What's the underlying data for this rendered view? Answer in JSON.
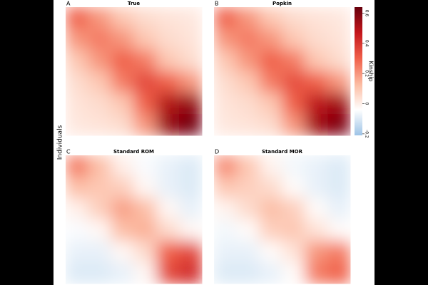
{
  "chart_data": {
    "type": "heatmap",
    "ylabel": "Individuals",
    "colorbar": {
      "label": "Kinship",
      "lim": [
        -0.21,
        0.64
      ],
      "ticks": [
        -0.2,
        0,
        0.2,
        0.4,
        0.6
      ],
      "colors": [
        "#9dc3e6",
        "#ffffff",
        "#fcbba1",
        "#f0604a",
        "#c4161c",
        "#67000d"
      ]
    },
    "panels": [
      {
        "letter": "A",
        "title": "True",
        "values": [
          [
            0.3,
            0.2,
            0.1,
            0.05,
            0.03,
            0.02
          ],
          [
            0.2,
            0.25,
            0.2,
            0.1,
            0.05,
            0.03
          ],
          [
            0.1,
            0.2,
            0.3,
            0.25,
            0.1,
            0.05
          ],
          [
            0.05,
            0.1,
            0.25,
            0.35,
            0.3,
            0.2
          ],
          [
            0.03,
            0.05,
            0.1,
            0.3,
            0.5,
            0.55
          ],
          [
            0.02,
            0.03,
            0.05,
            0.2,
            0.55,
            0.62
          ]
        ]
      },
      {
        "letter": "B",
        "title": "Popkin",
        "values": [
          [
            0.3,
            0.2,
            0.1,
            0.05,
            0.03,
            0.02
          ],
          [
            0.2,
            0.25,
            0.2,
            0.1,
            0.05,
            0.03
          ],
          [
            0.1,
            0.2,
            0.3,
            0.25,
            0.1,
            0.05
          ],
          [
            0.05,
            0.1,
            0.25,
            0.34,
            0.3,
            0.2
          ],
          [
            0.03,
            0.05,
            0.1,
            0.3,
            0.48,
            0.53
          ],
          [
            0.02,
            0.03,
            0.05,
            0.2,
            0.53,
            0.6
          ]
        ]
      },
      {
        "letter": "C",
        "title": "Standard ROM",
        "values": [
          [
            0.25,
            0.12,
            0.0,
            -0.05,
            -0.08,
            -0.1
          ],
          [
            0.12,
            0.1,
            0.08,
            -0.02,
            -0.08,
            -0.1
          ],
          [
            0.0,
            0.08,
            0.18,
            0.12,
            -0.02,
            -0.08
          ],
          [
            -0.05,
            -0.02,
            0.12,
            0.15,
            0.05,
            -0.02
          ],
          [
            -0.08,
            -0.08,
            -0.02,
            0.05,
            0.3,
            0.35
          ],
          [
            -0.1,
            -0.1,
            -0.08,
            -0.02,
            0.35,
            0.42
          ]
        ]
      },
      {
        "letter": "D",
        "title": "Standard MOR",
        "values": [
          [
            0.22,
            0.1,
            -0.01,
            -0.06,
            -0.08,
            -0.1
          ],
          [
            0.1,
            0.08,
            0.05,
            -0.03,
            -0.08,
            -0.1
          ],
          [
            -0.01,
            0.05,
            0.12,
            0.08,
            -0.03,
            -0.08
          ],
          [
            -0.06,
            -0.03,
            0.08,
            0.1,
            0.03,
            -0.03
          ],
          [
            -0.08,
            -0.08,
            -0.03,
            0.03,
            0.2,
            0.25
          ],
          [
            -0.1,
            -0.1,
            -0.08,
            -0.03,
            0.25,
            0.3
          ]
        ]
      }
    ]
  }
}
